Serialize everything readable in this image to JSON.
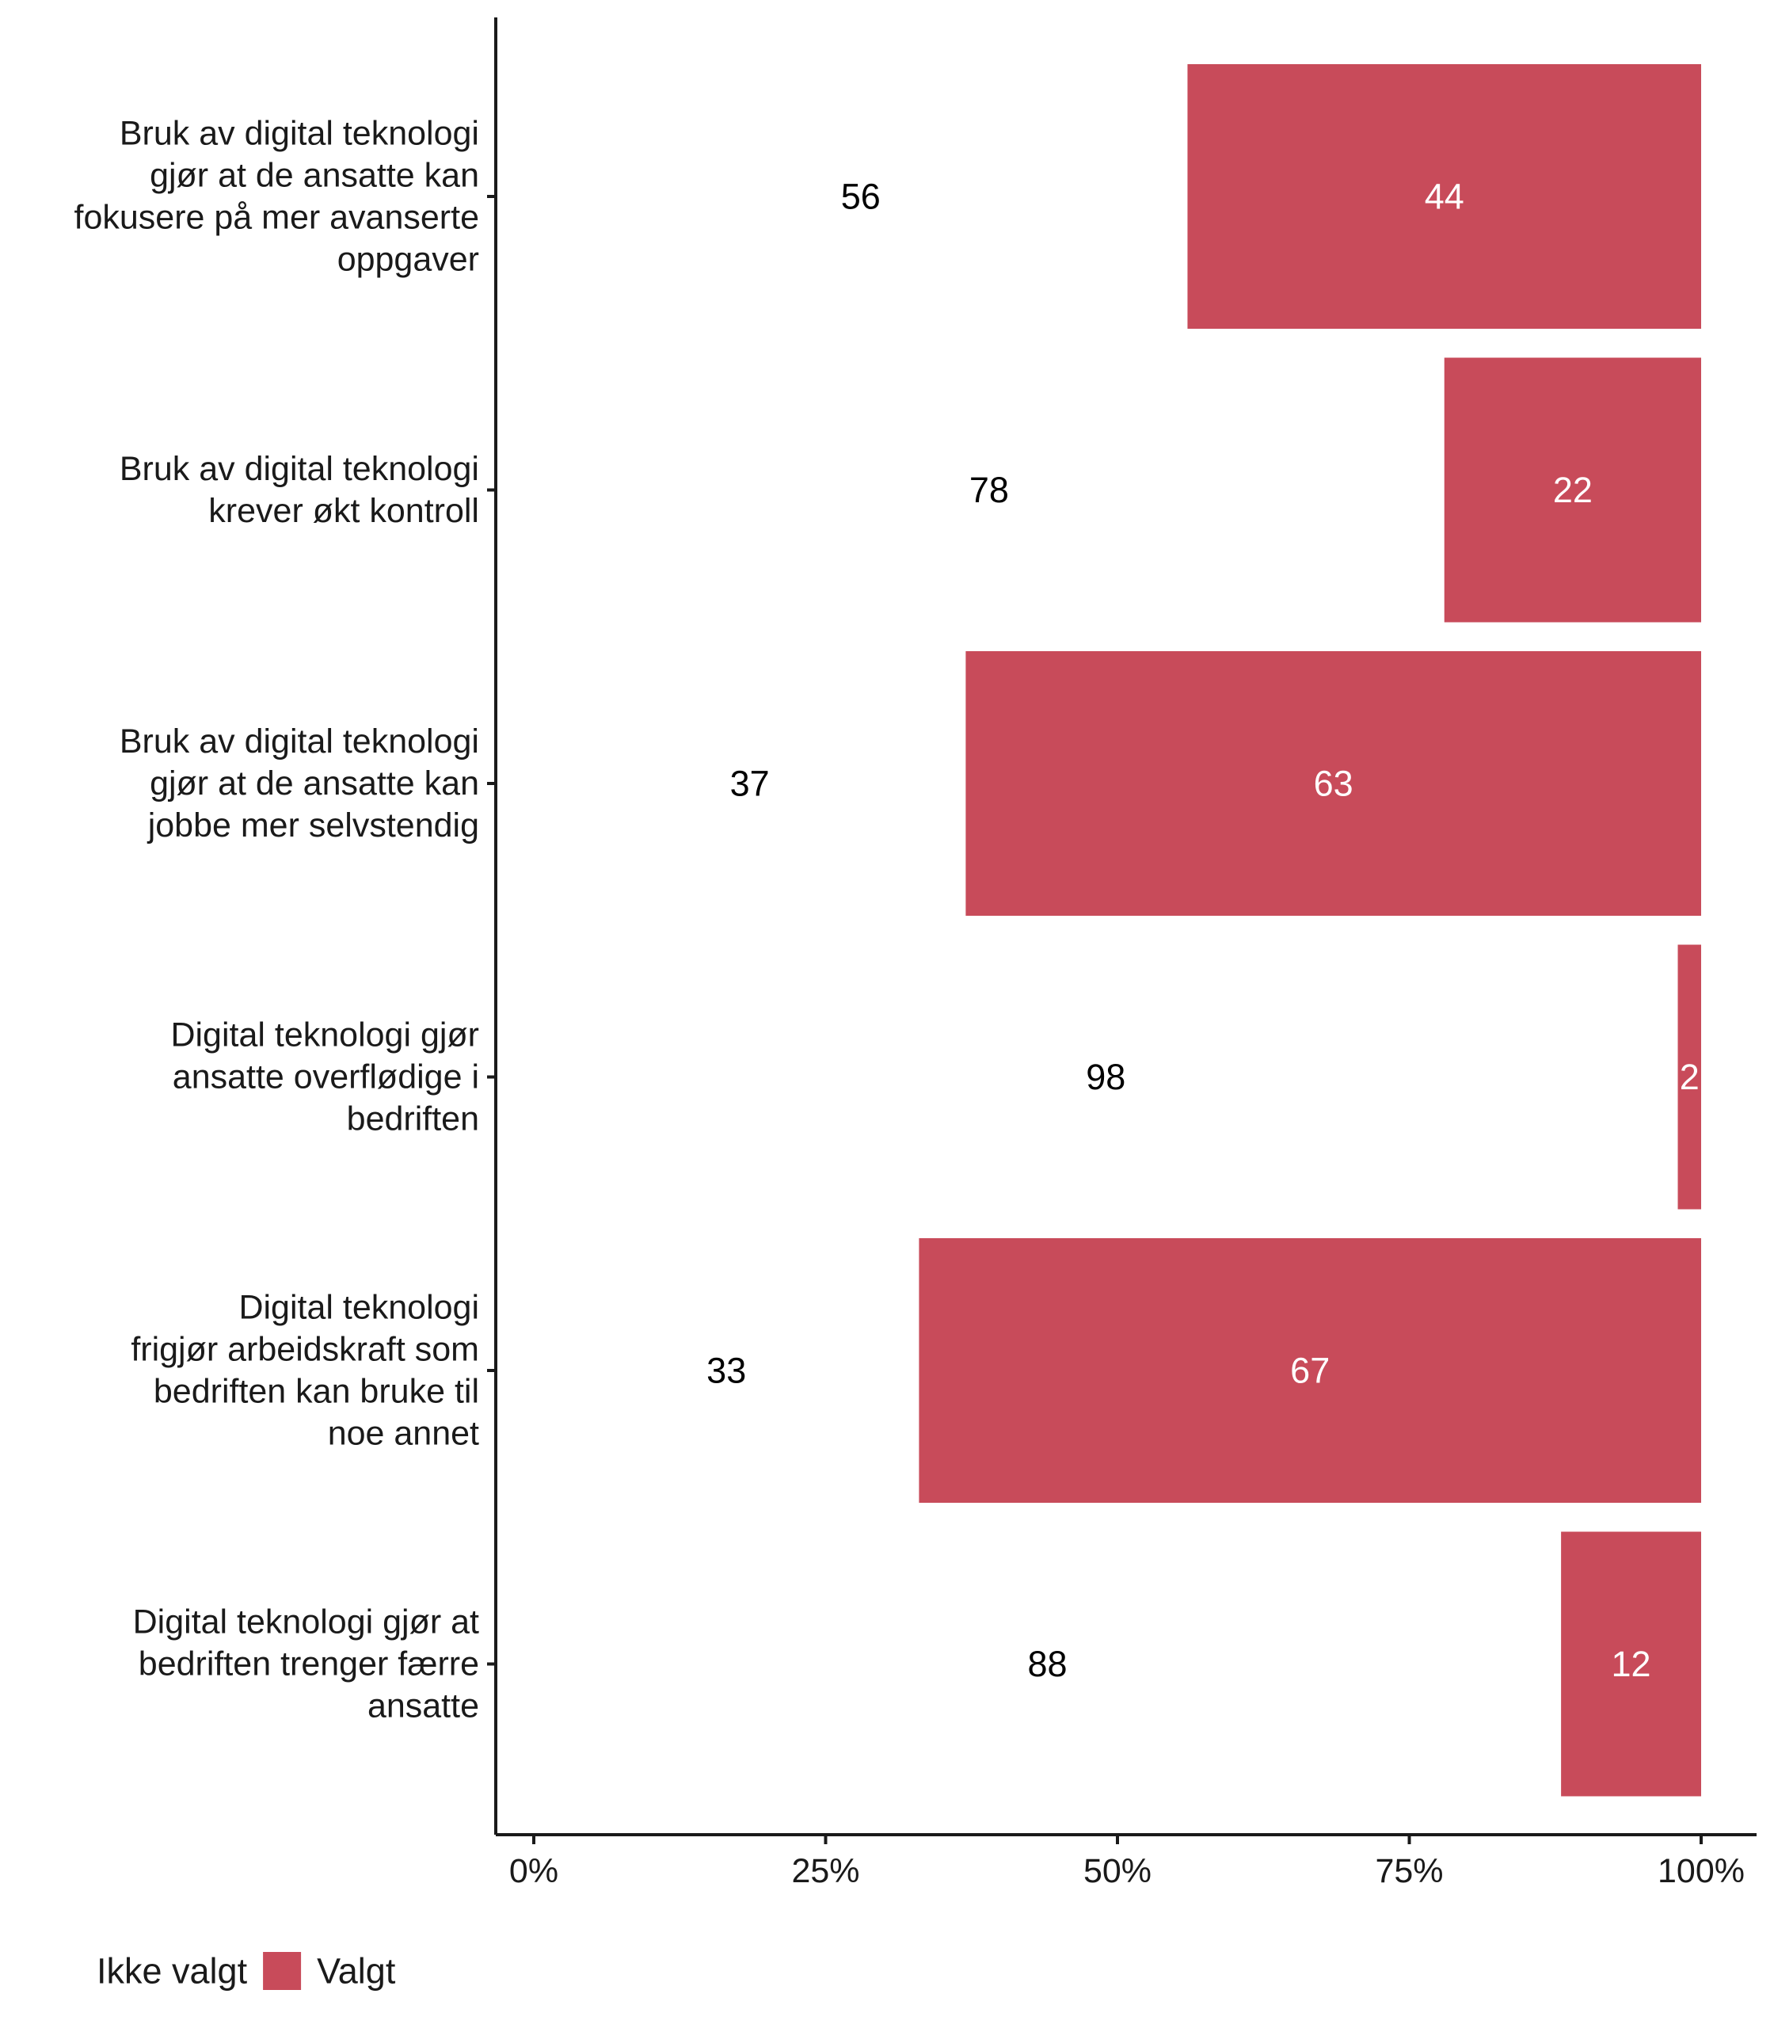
{
  "chart_data": {
    "type": "bar",
    "orientation": "horizontal",
    "stacked": true,
    "categories": [
      [
        "Bruk av digital teknologi",
        "gjør at de ansatte kan",
        "fokusere på mer avanserte",
        "oppgaver"
      ],
      [
        "Bruk av digital teknologi",
        "krever økt kontroll"
      ],
      [
        "Bruk av digital teknologi",
        "gjør at de ansatte kan",
        "jobbe mer selvstendig"
      ],
      [
        "Digital teknologi gjør",
        "ansatte overflødige i",
        "bedriften"
      ],
      [
        "Digital teknologi",
        "frigjør arbeidskraft som",
        "bedriften kan bruke til",
        "noe annet"
      ],
      [
        "Digital teknologi gjør at",
        "bedriften trenger færre",
        "ansatte"
      ]
    ],
    "series": [
      {
        "name": "Ikke valgt",
        "color": "#ffffff",
        "label_color": "#000000",
        "values": [
          56,
          78,
          37,
          98,
          33,
          88
        ]
      },
      {
        "name": "Valgt",
        "color": "#c84b5a",
        "label_color": "#ffffff",
        "values": [
          44,
          22,
          63,
          2,
          67,
          12
        ]
      }
    ],
    "value_labels": {
      "Ikke valgt": [
        "56",
        "78",
        "37",
        "98",
        "33",
        "88"
      ],
      "Valgt": [
        "44",
        "22",
        "63",
        "2",
        "67",
        "12"
      ]
    },
    "x_ticks": [
      0,
      25,
      50,
      75,
      100
    ],
    "x_tick_labels": [
      "0%",
      "25%",
      "50%",
      "75%",
      "100%"
    ],
    "xlim": [
      0,
      100
    ],
    "xlabel": "",
    "ylabel": "",
    "title": "",
    "grid": false,
    "legend": {
      "position": "bottom-left",
      "items": [
        "Ikke valgt",
        "Valgt"
      ]
    }
  }
}
